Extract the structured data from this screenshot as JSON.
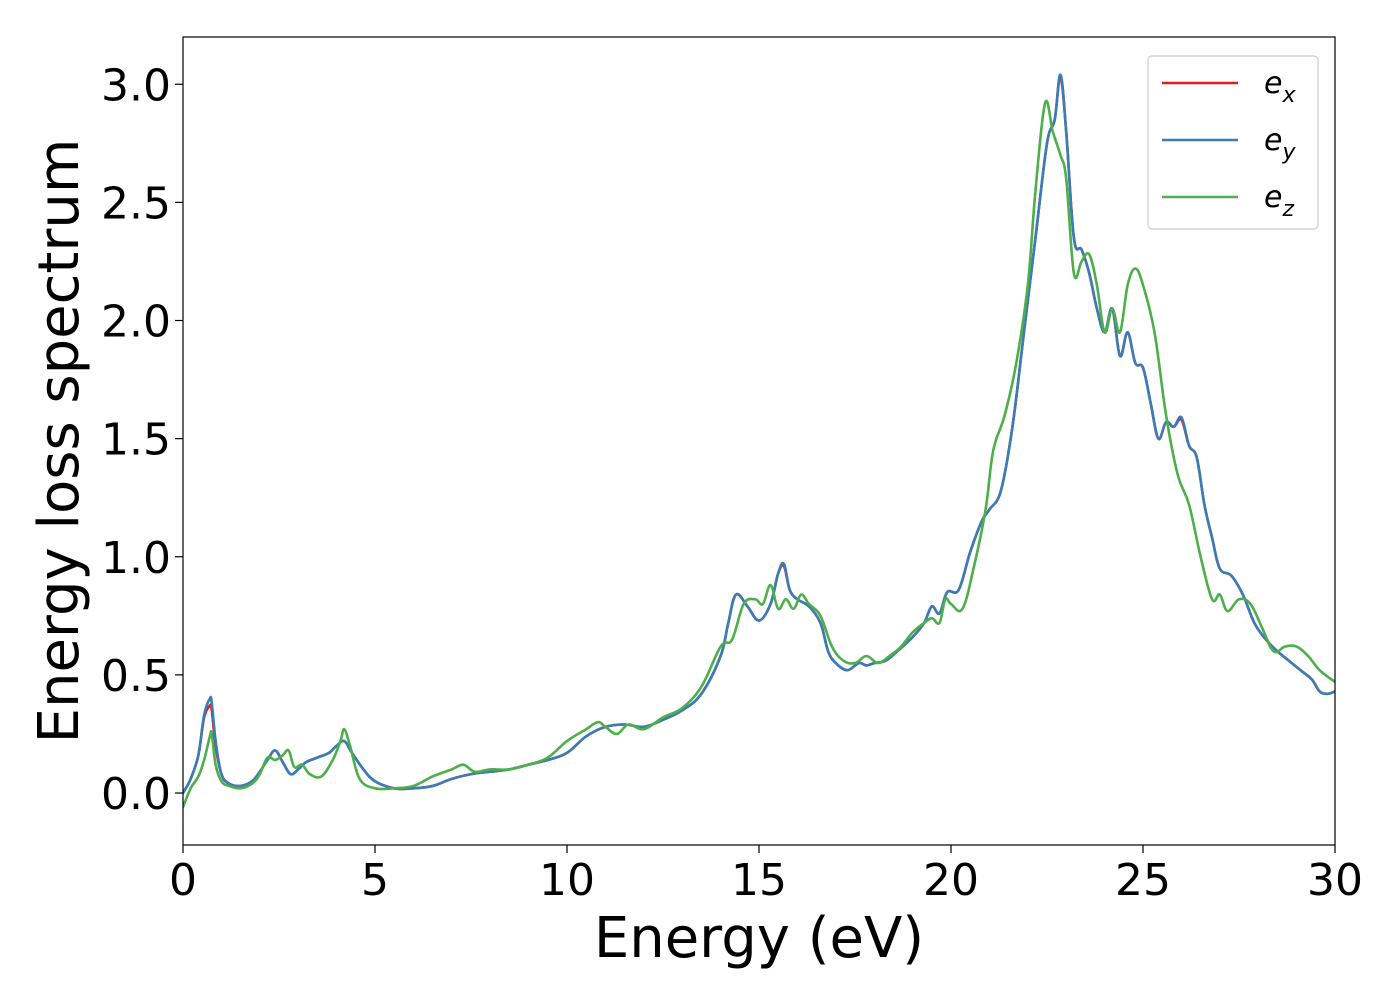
{
  "chart_data": {
    "type": "line",
    "xlabel": "Energy (eV)",
    "ylabel": "Energy loss spectrum",
    "xlim": [
      0,
      30
    ],
    "ylim": [
      -0.22,
      3.2
    ],
    "x_ticks": [
      0,
      5,
      10,
      15,
      20,
      25,
      30
    ],
    "x_tick_labels": [
      "0",
      "5",
      "10",
      "15",
      "20",
      "25",
      "30"
    ],
    "y_ticks": [
      0.0,
      0.5,
      1.0,
      1.5,
      2.0,
      2.5,
      3.0
    ],
    "y_tick_labels": [
      "0.0",
      "0.5",
      "1.0",
      "1.5",
      "2.0",
      "2.5",
      "3.0"
    ],
    "grid": false,
    "legend_position": "upper right",
    "series": [
      {
        "name": "e",
        "subscript": "x",
        "color": "#e41a1c",
        "x": [
          0,
          0.2,
          0.4,
          0.55,
          0.7,
          0.75,
          0.85,
          1.0,
          1.2,
          1.5,
          1.8,
          2.0,
          2.2,
          2.4,
          2.6,
          2.8,
          3.0,
          3.2,
          3.5,
          3.8,
          4.0,
          4.2,
          4.4,
          4.7,
          5.0,
          5.5,
          6.0,
          6.5,
          7.0,
          7.5,
          8.0,
          8.5,
          9.0,
          9.5,
          10.0,
          10.5,
          11.0,
          11.5,
          12.0,
          12.5,
          13.0,
          13.5,
          14.0,
          14.2,
          14.4,
          14.7,
          15.0,
          15.3,
          15.5,
          15.65,
          15.8,
          16.0,
          16.3,
          16.6,
          16.8,
          17.0,
          17.3,
          17.6,
          17.8,
          18.0,
          18.3,
          18.6,
          19.0,
          19.3,
          19.5,
          19.7,
          19.9,
          20.2,
          20.5,
          20.8,
          21.0,
          21.3,
          21.6,
          21.9,
          22.2,
          22.5,
          22.7,
          22.85,
          23.0,
          23.2,
          23.4,
          23.6,
          23.8,
          24.0,
          24.2,
          24.4,
          24.6,
          24.8,
          25.0,
          25.2,
          25.4,
          25.6,
          25.8,
          26.0,
          26.2,
          26.4,
          26.6,
          26.8,
          27.0,
          27.3,
          27.6,
          27.9,
          28.2,
          28.5,
          28.8,
          29.1,
          29.4,
          29.6,
          29.8,
          30.0
        ],
        "y": [
          0.0,
          0.06,
          0.16,
          0.32,
          0.37,
          0.35,
          0.2,
          0.08,
          0.04,
          0.03,
          0.05,
          0.09,
          0.14,
          0.18,
          0.13,
          0.08,
          0.1,
          0.13,
          0.15,
          0.17,
          0.2,
          0.22,
          0.17,
          0.1,
          0.05,
          0.02,
          0.02,
          0.03,
          0.06,
          0.08,
          0.09,
          0.1,
          0.12,
          0.14,
          0.17,
          0.24,
          0.28,
          0.29,
          0.28,
          0.31,
          0.35,
          0.42,
          0.58,
          0.72,
          0.84,
          0.79,
          0.73,
          0.8,
          0.93,
          0.96,
          0.86,
          0.82,
          0.79,
          0.72,
          0.6,
          0.55,
          0.52,
          0.55,
          0.54,
          0.55,
          0.56,
          0.6,
          0.66,
          0.72,
          0.79,
          0.76,
          0.85,
          0.86,
          1.02,
          1.15,
          1.2,
          1.28,
          1.55,
          1.95,
          2.35,
          2.75,
          2.85,
          3.03,
          2.8,
          2.35,
          2.3,
          2.2,
          2.05,
          1.95,
          2.05,
          1.85,
          1.95,
          1.82,
          1.8,
          1.65,
          1.5,
          1.57,
          1.55,
          1.58,
          1.47,
          1.42,
          1.22,
          1.08,
          0.95,
          0.92,
          0.84,
          0.72,
          0.65,
          0.6,
          0.56,
          0.52,
          0.48,
          0.43,
          0.42,
          0.43
        ]
      },
      {
        "name": "e",
        "subscript": "y",
        "color": "#377eb8",
        "x": [
          0,
          0.2,
          0.4,
          0.55,
          0.7,
          0.75,
          0.85,
          1.0,
          1.2,
          1.5,
          1.8,
          2.0,
          2.2,
          2.4,
          2.6,
          2.8,
          3.0,
          3.2,
          3.5,
          3.8,
          4.0,
          4.2,
          4.4,
          4.7,
          5.0,
          5.5,
          6.0,
          6.5,
          7.0,
          7.5,
          8.0,
          8.5,
          9.0,
          9.5,
          10.0,
          10.5,
          11.0,
          11.5,
          12.0,
          12.5,
          13.0,
          13.5,
          14.0,
          14.2,
          14.4,
          14.7,
          15.0,
          15.3,
          15.5,
          15.65,
          15.8,
          16.0,
          16.3,
          16.6,
          16.8,
          17.0,
          17.3,
          17.6,
          17.8,
          18.0,
          18.3,
          18.6,
          19.0,
          19.3,
          19.5,
          19.7,
          19.9,
          20.2,
          20.5,
          20.8,
          21.0,
          21.3,
          21.6,
          21.9,
          22.2,
          22.5,
          22.7,
          22.85,
          23.0,
          23.2,
          23.4,
          23.6,
          23.8,
          24.0,
          24.2,
          24.4,
          24.6,
          24.8,
          25.0,
          25.2,
          25.4,
          25.6,
          25.8,
          26.0,
          26.2,
          26.4,
          26.6,
          26.8,
          27.0,
          27.3,
          27.6,
          27.9,
          28.2,
          28.5,
          28.8,
          29.1,
          29.4,
          29.6,
          29.8,
          30.0
        ],
        "y": [
          0.0,
          0.06,
          0.16,
          0.33,
          0.4,
          0.38,
          0.22,
          0.08,
          0.04,
          0.03,
          0.05,
          0.09,
          0.14,
          0.18,
          0.13,
          0.08,
          0.1,
          0.13,
          0.15,
          0.17,
          0.2,
          0.22,
          0.17,
          0.1,
          0.05,
          0.02,
          0.02,
          0.03,
          0.06,
          0.08,
          0.09,
          0.1,
          0.12,
          0.14,
          0.17,
          0.24,
          0.28,
          0.29,
          0.28,
          0.31,
          0.35,
          0.42,
          0.58,
          0.72,
          0.84,
          0.79,
          0.73,
          0.8,
          0.93,
          0.97,
          0.86,
          0.82,
          0.79,
          0.72,
          0.6,
          0.55,
          0.52,
          0.55,
          0.54,
          0.55,
          0.56,
          0.6,
          0.66,
          0.72,
          0.79,
          0.76,
          0.85,
          0.86,
          1.02,
          1.15,
          1.2,
          1.28,
          1.55,
          1.95,
          2.35,
          2.75,
          2.85,
          3.04,
          2.8,
          2.35,
          2.3,
          2.2,
          2.05,
          1.95,
          2.05,
          1.85,
          1.95,
          1.82,
          1.8,
          1.65,
          1.5,
          1.57,
          1.55,
          1.59,
          1.47,
          1.42,
          1.22,
          1.08,
          0.95,
          0.92,
          0.84,
          0.72,
          0.65,
          0.6,
          0.56,
          0.52,
          0.48,
          0.43,
          0.42,
          0.43
        ]
      },
      {
        "name": "e",
        "subscript": "z",
        "color": "#4daf4a",
        "x": [
          0,
          0.2,
          0.4,
          0.55,
          0.7,
          0.75,
          0.85,
          1.0,
          1.2,
          1.5,
          1.8,
          2.0,
          2.2,
          2.4,
          2.6,
          2.75,
          2.9,
          3.1,
          3.3,
          3.6,
          3.9,
          4.1,
          4.2,
          4.35,
          4.6,
          5.0,
          5.5,
          6.0,
          6.5,
          7.0,
          7.3,
          7.6,
          8.0,
          8.5,
          9.0,
          9.5,
          10.0,
          10.5,
          10.8,
          11.0,
          11.3,
          11.6,
          12.0,
          12.5,
          13.0,
          13.5,
          14.0,
          14.3,
          14.6,
          14.9,
          15.1,
          15.3,
          15.5,
          15.7,
          15.9,
          16.1,
          16.3,
          16.6,
          16.9,
          17.2,
          17.5,
          17.8,
          18.1,
          18.4,
          18.7,
          19.0,
          19.3,
          19.5,
          19.7,
          19.85,
          20.0,
          20.3,
          20.6,
          20.9,
          21.1,
          21.4,
          21.7,
          22.0,
          22.2,
          22.45,
          22.65,
          22.85,
          23.0,
          23.2,
          23.4,
          23.6,
          23.8,
          24.0,
          24.2,
          24.4,
          24.6,
          24.8,
          25.0,
          25.3,
          25.6,
          25.9,
          26.2,
          26.5,
          26.8,
          27.0,
          27.2,
          27.5,
          27.8,
          28.1,
          28.4,
          28.7,
          29.0,
          29.3,
          29.6,
          30.0
        ],
        "y": [
          -0.06,
          0.02,
          0.07,
          0.14,
          0.24,
          0.25,
          0.12,
          0.05,
          0.03,
          0.02,
          0.04,
          0.08,
          0.15,
          0.14,
          0.16,
          0.18,
          0.11,
          0.12,
          0.08,
          0.07,
          0.14,
          0.22,
          0.27,
          0.2,
          0.06,
          0.02,
          0.02,
          0.03,
          0.07,
          0.1,
          0.12,
          0.09,
          0.1,
          0.1,
          0.12,
          0.15,
          0.22,
          0.27,
          0.3,
          0.28,
          0.25,
          0.29,
          0.27,
          0.32,
          0.36,
          0.45,
          0.62,
          0.65,
          0.8,
          0.82,
          0.8,
          0.88,
          0.78,
          0.82,
          0.78,
          0.84,
          0.8,
          0.75,
          0.62,
          0.56,
          0.55,
          0.58,
          0.55,
          0.58,
          0.62,
          0.68,
          0.72,
          0.74,
          0.72,
          0.82,
          0.8,
          0.78,
          0.96,
          1.2,
          1.45,
          1.6,
          1.82,
          2.15,
          2.55,
          2.92,
          2.8,
          2.7,
          2.6,
          2.2,
          2.25,
          2.28,
          2.15,
          1.95,
          2.05,
          1.95,
          2.15,
          2.22,
          2.15,
          1.95,
          1.6,
          1.35,
          1.22,
          1.0,
          0.82,
          0.84,
          0.77,
          0.82,
          0.8,
          0.7,
          0.6,
          0.62,
          0.62,
          0.58,
          0.52,
          0.47
        ]
      }
    ]
  }
}
